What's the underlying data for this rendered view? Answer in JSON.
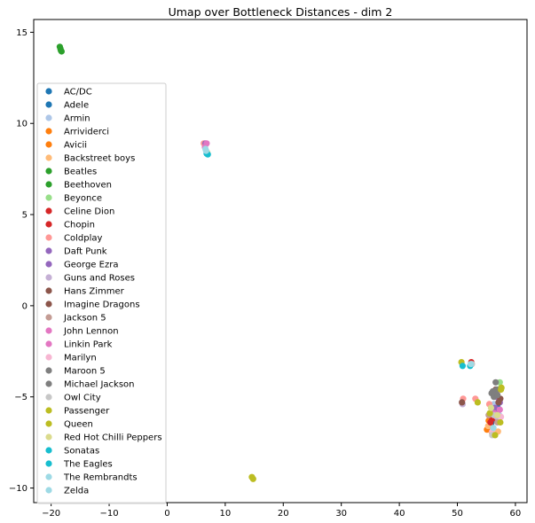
{
  "chart_data": {
    "type": "scatter",
    "title": "Umap over Bottleneck Distances - dim 2",
    "xlabel": "",
    "ylabel": "",
    "xlim": [
      -23,
      62
    ],
    "ylim": [
      -10.8,
      15.7
    ],
    "xticks": [
      -20,
      -10,
      0,
      10,
      20,
      30,
      40,
      50,
      60
    ],
    "yticks": [
      -10,
      -5,
      0,
      5,
      10,
      15
    ],
    "xtick_labels": [
      "−20",
      "−10",
      "0",
      "10",
      "20",
      "30",
      "40",
      "50",
      "60"
    ],
    "ytick_labels": [
      "−10",
      "−5",
      "0",
      "5",
      "10",
      "15"
    ],
    "grid": false,
    "legend_position": "center-left",
    "series": [
      {
        "name": "AC/DC",
        "color": "#1f77b4",
        "points": [
          [
            56.1,
            -6.3
          ],
          [
            56.6,
            -5.8
          ]
        ]
      },
      {
        "name": "Adele",
        "color": "#1f77b4",
        "points": [
          [
            55.8,
            -6.5
          ],
          [
            56.9,
            -5.5
          ]
        ]
      },
      {
        "name": "Armin",
        "color": "#aec7e8",
        "points": [
          [
            56.3,
            -5.4
          ],
          [
            57.2,
            -6.0
          ]
        ]
      },
      {
        "name": "Arrividerci",
        "color": "#ff7f0e",
        "points": [
          [
            55.1,
            -6.8
          ],
          [
            55.6,
            -6.5
          ]
        ]
      },
      {
        "name": "Avicii",
        "color": "#ff7f0e",
        "points": [
          [
            55.4,
            -6.3
          ],
          [
            56.0,
            -7.0
          ]
        ]
      },
      {
        "name": "Backstreet boys",
        "color": "#ffbb78",
        "points": [
          [
            55.3,
            -6.6
          ],
          [
            57.0,
            -6.9
          ]
        ]
      },
      {
        "name": "Beatles",
        "color": "#2ca02c",
        "points": [
          [
            -18.5,
            14.2
          ],
          [
            -18.3,
            14.0
          ]
        ]
      },
      {
        "name": "Beethoven",
        "color": "#2ca02c",
        "points": [
          [
            -18.4,
            14.1
          ],
          [
            -18.2,
            13.95
          ]
        ]
      },
      {
        "name": "Beyonce",
        "color": "#98df8a",
        "points": [
          [
            57.3,
            -4.2
          ],
          [
            57.5,
            -4.5
          ]
        ]
      },
      {
        "name": "Celine Dion",
        "color": "#d62728",
        "points": [
          [
            52.4,
            -3.1
          ],
          [
            56.0,
            -6.2
          ]
        ]
      },
      {
        "name": "Chopin",
        "color": "#d62728",
        "points": [
          [
            55.7,
            -6.4
          ],
          [
            56.2,
            -6.1
          ]
        ]
      },
      {
        "name": "Coldplay",
        "color": "#ff9896",
        "points": [
          [
            6.3,
            8.9
          ],
          [
            51.0,
            -5.1
          ],
          [
            53.1,
            -5.1
          ],
          [
            55.5,
            -5.4
          ]
        ]
      },
      {
        "name": "Daft Punk",
        "color": "#9467bd",
        "points": [
          [
            56.7,
            -5.0
          ],
          [
            57.3,
            -5.3
          ]
        ]
      },
      {
        "name": "George Ezra",
        "color": "#9467bd",
        "points": [
          [
            6.6,
            8.9
          ],
          [
            56.5,
            -5.6
          ]
        ]
      },
      {
        "name": "Guns and Roses",
        "color": "#c5b0d5",
        "points": [
          [
            50.9,
            -5.4
          ],
          [
            56.8,
            -6.1
          ]
        ]
      },
      {
        "name": "Hans Zimmer",
        "color": "#8c564b",
        "points": [
          [
            50.8,
            -5.3
          ],
          [
            57.1,
            -5.3
          ]
        ]
      },
      {
        "name": "Imagine Dragons",
        "color": "#8c564b",
        "points": [
          [
            56.6,
            -4.6
          ],
          [
            57.4,
            -5.1
          ]
        ]
      },
      {
        "name": "Jackson 5",
        "color": "#c49c94",
        "points": [
          [
            55.4,
            -6.0
          ],
          [
            56.9,
            -6.4
          ]
        ]
      },
      {
        "name": "John Lennon",
        "color": "#e377c2",
        "points": [
          [
            6.8,
            8.9
          ],
          [
            56.9,
            -4.7
          ],
          [
            57.3,
            -5.7
          ]
        ]
      },
      {
        "name": "Linkin Park",
        "color": "#e377c2",
        "points": [
          [
            6.5,
            8.7
          ],
          [
            56.4,
            -5.9
          ]
        ]
      },
      {
        "name": "Marilyn",
        "color": "#f7b6d2",
        "points": [
          [
            56.0,
            -6.9
          ],
          [
            57.5,
            -6.1
          ]
        ]
      },
      {
        "name": "Maroon 5",
        "color": "#7f7f7f",
        "points": [
          [
            56.6,
            -4.2
          ],
          [
            55.9,
            -4.8
          ],
          [
            56.8,
            -4.6
          ]
        ]
      },
      {
        "name": "Michael Jackson",
        "color": "#7f7f7f",
        "points": [
          [
            56.1,
            -4.7
          ],
          [
            56.3,
            -5.0
          ],
          [
            56.9,
            -4.9
          ]
        ]
      },
      {
        "name": "Owl City",
        "color": "#c7c7c7",
        "points": [
          [
            52.5,
            -3.2
          ],
          [
            56.3,
            -6.0
          ],
          [
            56.0,
            -7.1
          ]
        ]
      },
      {
        "name": "Passenger",
        "color": "#bcbd22",
        "points": [
          [
            14.6,
            -9.4
          ],
          [
            50.7,
            -3.1
          ],
          [
            53.5,
            -5.3
          ],
          [
            57.5,
            -4.6
          ]
        ]
      },
      {
        "name": "Queen",
        "color": "#bcbd22",
        "points": [
          [
            14.8,
            -9.5
          ],
          [
            55.6,
            -5.9
          ],
          [
            56.5,
            -7.1
          ],
          [
            57.4,
            -6.4
          ],
          [
            57.6,
            -4.5
          ]
        ]
      },
      {
        "name": "Red Hot Chilli Peppers",
        "color": "#dbdb8d",
        "points": [
          [
            6.9,
            8.4
          ],
          [
            56.9,
            -6.0
          ],
          [
            55.8,
            -5.6
          ]
        ]
      },
      {
        "name": "Sonatas",
        "color": "#17becf",
        "points": [
          [
            7.0,
            8.3
          ],
          [
            50.9,
            -3.3
          ]
        ]
      },
      {
        "name": "The Eagles",
        "color": "#17becf",
        "points": [
          [
            6.8,
            8.35
          ],
          [
            52.2,
            -3.3
          ]
        ]
      },
      {
        "name": "The Rembrandts",
        "color": "#9edae5",
        "points": [
          [
            6.7,
            8.5
          ],
          [
            52.3,
            -3.2
          ]
        ]
      },
      {
        "name": "Zelda",
        "color": "#9edae5",
        "points": [
          [
            6.6,
            8.6
          ],
          [
            56.2,
            -6.7
          ]
        ]
      }
    ]
  }
}
